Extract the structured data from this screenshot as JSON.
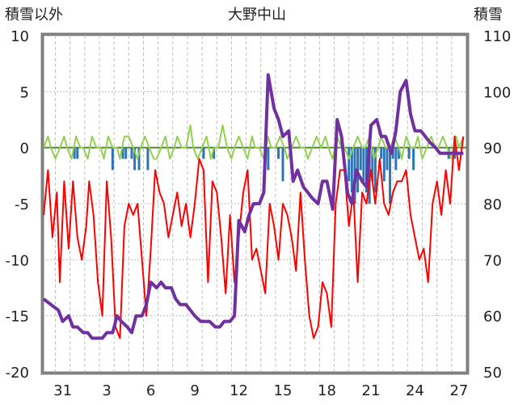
{
  "chart_data": {
    "type": "line",
    "title": "大野中山",
    "left_axis_label": "積雪以外",
    "right_axis_label": "積雪",
    "ylim_left": [
      -20,
      10
    ],
    "ylim_right": [
      50,
      110
    ],
    "left_ticks": [
      "10",
      "5",
      "0",
      "-5",
      "-10",
      "-15",
      "-20"
    ],
    "right_ticks": [
      "110",
      "100",
      "90",
      "80",
      "70",
      "60",
      "50"
    ],
    "x_ticks": [
      "31",
      "3",
      "6",
      "9",
      "12",
      "15",
      "18",
      "21",
      "24",
      "27"
    ],
    "colors": {
      "temperature": "#ff0000",
      "snow_depth": "#7030a0",
      "precipitation": "#2e75b6",
      "sunshine": "#92d050",
      "zero_line": "#548235",
      "frame": "#808080",
      "grid": "#bfbfbf"
    },
    "series": [
      {
        "color": "#ff0000",
        "axis": "left",
        "x": [
          29.0,
          29.3,
          29.6,
          29.9,
          30.1,
          30.4,
          30.7,
          31.0,
          31.3,
          31.6,
          31.9,
          32.1,
          32.4,
          32.7,
          33.0,
          33.3,
          33.6,
          33.9,
          34.2,
          34.5,
          34.8,
          35.1,
          35.4,
          35.7,
          36.0,
          36.3,
          36.6,
          36.9,
          37.2,
          37.5,
          37.8,
          38.1,
          38.4,
          38.7,
          39.0,
          39.3,
          39.6,
          39.9,
          40.2,
          40.5,
          40.8,
          41.1,
          41.4,
          41.7,
          42.0,
          42.3,
          42.6,
          42.9,
          43.2,
          43.5,
          43.8,
          44.1,
          44.4,
          44.7,
          45.0,
          45.3,
          45.6,
          45.9,
          46.2,
          46.5,
          46.8,
          47.1,
          47.4,
          47.7,
          48.0,
          48.3,
          48.6,
          48.9,
          49.2,
          49.5,
          49.8,
          50.1,
          50.4,
          50.7,
          51.0,
          51.3,
          51.6,
          51.9,
          52.2,
          52.5,
          52.8,
          53.1,
          53.4,
          53.7,
          54.0,
          54.3,
          54.6,
          54.9,
          55.2,
          55.5,
          55.8,
          56.1,
          56.4,
          56.7,
          57.0,
          57.3,
          57.6
        ],
        "y": [
          -6,
          -2,
          -8,
          -4,
          -12,
          -3,
          -9,
          -3,
          -8,
          -10,
          -7,
          -3,
          -6,
          -12,
          -15,
          -3,
          -8,
          -16,
          -17,
          -7,
          -5,
          -6,
          -5,
          -10,
          -15,
          -9,
          -2,
          -4,
          -5,
          -8,
          -6,
          -4,
          -7,
          -5,
          -8,
          -5,
          -1,
          -2,
          -12,
          -3,
          -4,
          -8,
          -13,
          -6,
          -12,
          -8,
          -4,
          -2,
          -10,
          -9,
          -11,
          -13,
          -5,
          -7,
          -10,
          -5,
          -6,
          -8,
          -11,
          -4,
          -10,
          -15,
          -17,
          -16,
          -12,
          -13,
          -16,
          -5,
          -2,
          -2,
          -7,
          -4,
          -12,
          -4,
          -5,
          -2,
          -5,
          -1,
          -5,
          -6,
          -4,
          -3,
          -3,
          -2,
          -6,
          -8,
          -10,
          -9,
          -12,
          -5,
          -3,
          -6,
          -2,
          -5,
          1,
          -2,
          1
        ]
      },
      {
        "color": "#7030a0",
        "axis": "right",
        "x": [
          29.0,
          29.5,
          30.0,
          30.3,
          30.7,
          31.0,
          31.3,
          31.7,
          32.0,
          32.3,
          32.7,
          33.0,
          33.3,
          33.7,
          34.0,
          34.3,
          34.7,
          35.0,
          35.3,
          35.7,
          36.0,
          36.3,
          36.7,
          37.0,
          37.3,
          37.7,
          38.0,
          38.3,
          38.7,
          39.0,
          39.3,
          39.7,
          40.0,
          40.3,
          40.7,
          41.0,
          41.3,
          41.7,
          42.0,
          42.3,
          42.7,
          43.0,
          43.3,
          43.7,
          44.0,
          44.3,
          44.7,
          45.0,
          45.3,
          45.7,
          46.0,
          46.3,
          46.7,
          47.0,
          47.3,
          47.7,
          48.0,
          48.3,
          48.7,
          49.0,
          49.3,
          49.7,
          50.0,
          50.3,
          50.7,
          51.0,
          51.3,
          51.7,
          52.0,
          52.3,
          52.7,
          53.0,
          53.3,
          53.7,
          54.0,
          54.3,
          54.7,
          55.0,
          55.3,
          55.7,
          56.0,
          56.3,
          56.7,
          57.0,
          57.3,
          57.6
        ],
        "y": [
          63,
          62,
          61,
          59,
          60,
          58,
          58,
          57,
          57,
          56,
          56,
          56,
          57,
          57,
          60,
          59,
          58,
          57,
          60,
          60,
          62,
          66,
          65,
          66,
          65,
          65,
          63,
          62,
          62,
          61,
          60,
          59,
          59,
          59,
          58,
          58,
          59,
          59,
          60,
          77,
          75,
          78,
          80,
          80,
          82,
          103,
          97,
          95,
          92,
          93,
          84,
          86,
          83,
          82,
          81,
          80,
          84,
          84,
          79,
          95,
          92,
          82,
          80,
          86,
          84,
          83,
          94,
          95,
          92,
          92,
          89,
          93,
          100,
          102,
          96,
          93,
          93,
          92,
          91,
          90,
          89,
          89,
          89,
          89,
          89,
          89
        ]
      },
      {
        "color": "#2e75b6",
        "axis": "left",
        "type": "bar",
        "x": [
          31.1,
          31.3,
          33.7,
          34.4,
          34.6,
          35.0,
          35.2,
          35.5,
          36.1,
          39.9,
          40.6,
          44.1,
          44.3,
          45.0,
          45.3,
          49.8,
          50.0,
          50.2,
          50.4,
          50.6,
          50.8,
          51.0,
          51.2,
          51.4,
          51.6,
          52.0,
          52.2,
          52.4,
          52.6,
          52.8,
          53.0,
          53.2,
          53.9,
          54.2,
          56.6,
          57.0
        ],
        "y": [
          -1,
          -1,
          -2,
          -1,
          -1,
          -1,
          -2,
          -2,
          -2,
          -1,
          -1,
          -1,
          -2,
          -1,
          -3,
          -3,
          -4,
          -5,
          -4,
          -2,
          -3,
          -4,
          -5,
          -3,
          -4,
          -1,
          -3,
          -2,
          -5,
          -1,
          -2,
          -1,
          -1,
          -2,
          -1,
          -1
        ]
      },
      {
        "color": "#92d050",
        "axis": "left",
        "x": [
          29.0,
          29.3,
          29.5,
          29.8,
          30.1,
          30.4,
          30.6,
          30.9,
          31.2,
          31.5,
          31.7,
          32.0,
          32.3,
          32.6,
          32.9,
          33.1,
          33.4,
          33.7,
          34.0,
          34.2,
          34.5,
          34.8,
          35.1,
          35.4,
          35.6,
          35.9,
          36.2,
          36.5,
          36.7,
          37.0,
          37.3,
          37.6,
          37.9,
          38.1,
          38.4,
          38.7,
          39.0,
          39.2,
          39.5,
          39.8,
          40.1,
          40.4,
          40.6,
          40.9,
          41.2,
          41.5,
          41.8,
          42.0,
          42.3,
          42.6,
          42.9,
          43.2,
          43.4,
          43.7,
          44.0,
          44.3,
          44.5,
          44.8,
          45.1,
          45.4,
          45.6,
          45.9,
          46.2,
          46.5,
          46.8,
          47.0,
          47.3,
          47.6,
          47.9,
          48.2,
          48.4,
          48.7,
          49.0,
          49.3,
          49.5,
          49.8,
          50.1,
          50.4,
          50.7,
          50.9,
          51.2,
          51.5,
          51.8,
          52.0,
          52.3,
          52.6,
          52.9,
          53.2,
          53.4,
          53.7,
          54.0,
          54.3,
          54.5,
          54.8,
          55.1,
          55.4,
          55.7,
          55.9,
          56.2,
          56.5,
          56.8,
          57.1,
          57.3,
          57.6
        ],
        "y": [
          0,
          1,
          0,
          -1,
          0,
          1,
          0,
          -1,
          1,
          0,
          0,
          -1,
          1,
          0,
          0,
          -1,
          1,
          0,
          0,
          -1,
          1,
          1,
          0,
          -1,
          0,
          1,
          0,
          -1,
          -1,
          0,
          1,
          -1,
          0,
          1,
          0,
          0,
          2,
          0,
          -1,
          0,
          1,
          -1,
          0,
          0,
          2,
          0,
          -1,
          0,
          1,
          0,
          -1,
          1,
          0,
          0,
          -1,
          1,
          0,
          0,
          1,
          0,
          -1,
          0,
          1,
          0,
          0,
          -1,
          0,
          1,
          0,
          1,
          0,
          -1,
          1,
          0,
          0,
          -1,
          0,
          1,
          0,
          0,
          1,
          -1,
          0,
          1,
          0,
          0,
          1,
          0,
          -1,
          1,
          0,
          0,
          1,
          -1,
          0,
          1,
          0,
          0,
          1,
          0,
          -1,
          1,
          0,
          1
        ]
      }
    ]
  }
}
